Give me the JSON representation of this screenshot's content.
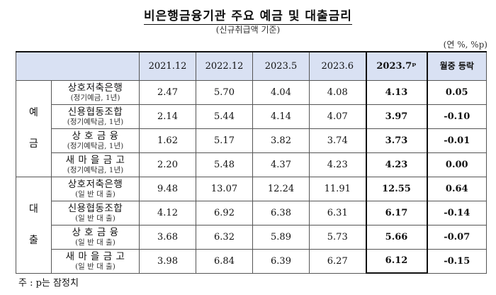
{
  "title": "비은행금융기관 주요 예금 및 대출금리",
  "subtitle": "(신규취급액 기준)",
  "unit": "(연 %, %p)",
  "headers": {
    "periods": [
      "2021.12",
      "2022.12",
      "2023.5",
      "2023.6",
      "2023.7ᵖ"
    ],
    "change": "월중 등락"
  },
  "groups": [
    {
      "label_chars": [
        "예",
        "금"
      ],
      "rows": [
        {
          "name": "상호저축은행",
          "sub": "(정기예금, 1년)",
          "values": [
            "2.47",
            "5.70",
            "4.04",
            "4.08",
            "4.13",
            "0.05"
          ]
        },
        {
          "name": "신용협동조합",
          "sub": "(정기예탁금, 1년)",
          "values": [
            "2.14",
            "5.44",
            "4.14",
            "4.07",
            "3.97",
            "-0.10"
          ]
        },
        {
          "name": "상 호  금 융",
          "sub": "(정기예탁금, 1년)",
          "values": [
            "1.62",
            "5.17",
            "3.82",
            "3.74",
            "3.73",
            "-0.01"
          ]
        },
        {
          "name": "새 마 을 금 고",
          "sub": "(정기예탁금, 1년)",
          "values": [
            "2.20",
            "5.48",
            "4.37",
            "4.23",
            "4.23",
            "0.00"
          ]
        }
      ]
    },
    {
      "label_chars": [
        "대",
        "출"
      ],
      "rows": [
        {
          "name": "상호저축은행",
          "sub": "(일 반 대 출)",
          "values": [
            "9.48",
            "13.07",
            "12.24",
            "11.91",
            "12.55",
            "0.64"
          ]
        },
        {
          "name": "신용협동조합",
          "sub": "(일 반 대 출)",
          "values": [
            "4.12",
            "6.92",
            "6.38",
            "6.31",
            "6.17",
            "-0.14"
          ]
        },
        {
          "name": "상 호  금 융",
          "sub": "(일 반 대 출)",
          "values": [
            "3.68",
            "6.32",
            "5.89",
            "5.73",
            "5.66",
            "-0.07"
          ]
        },
        {
          "name": "새 마 을 금 고",
          "sub": "(일 반 대 출)",
          "values": [
            "3.98",
            "6.84",
            "6.39",
            "6.27",
            "6.12",
            "-0.15"
          ]
        }
      ]
    }
  ],
  "note": "주 : p는 잠정치"
}
